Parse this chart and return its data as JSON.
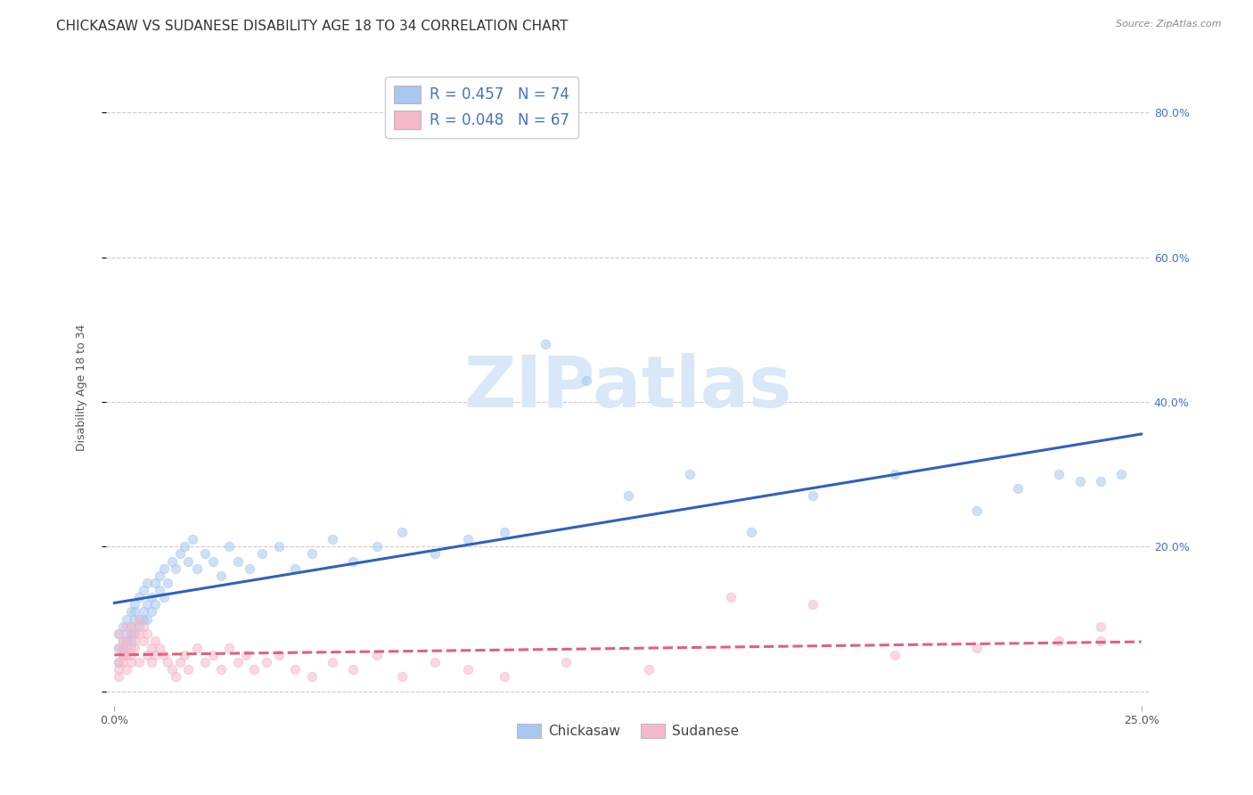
{
  "title": "CHICKASAW VS SUDANESE DISABILITY AGE 18 TO 34 CORRELATION CHART",
  "source": "Source: ZipAtlas.com",
  "ylabel_label": "Disability Age 18 to 34",
  "chickasaw_R": 0.457,
  "chickasaw_N": 74,
  "sudanese_R": 0.048,
  "sudanese_N": 67,
  "chickasaw_color": "#A8C8F0",
  "sudanese_color": "#F5B8C8",
  "chickasaw_line_color": "#3060C0",
  "sudanese_line_color": "#E06080",
  "background_color": "#FFFFFF",
  "watermark_color": "#D8E8F8",
  "legend_chickasaw": "Chickasaw",
  "legend_sudanese": "Sudanese",
  "chickasaw_x": [
    0.001,
    0.001,
    0.001,
    0.002,
    0.002,
    0.002,
    0.002,
    0.003,
    0.003,
    0.003,
    0.003,
    0.004,
    0.004,
    0.004,
    0.004,
    0.005,
    0.005,
    0.005,
    0.005,
    0.006,
    0.006,
    0.006,
    0.007,
    0.007,
    0.007,
    0.008,
    0.008,
    0.008,
    0.009,
    0.009,
    0.01,
    0.01,
    0.011,
    0.011,
    0.012,
    0.012,
    0.013,
    0.014,
    0.015,
    0.016,
    0.017,
    0.018,
    0.019,
    0.02,
    0.022,
    0.024,
    0.026,
    0.028,
    0.03,
    0.033,
    0.036,
    0.04,
    0.044,
    0.048,
    0.053,
    0.058,
    0.064,
    0.07,
    0.078,
    0.086,
    0.095,
    0.105,
    0.115,
    0.125,
    0.14,
    0.155,
    0.17,
    0.19,
    0.21,
    0.22,
    0.23,
    0.235,
    0.24,
    0.245
  ],
  "chickasaw_y": [
    0.04,
    0.06,
    0.08,
    0.05,
    0.07,
    0.09,
    0.06,
    0.07,
    0.08,
    0.1,
    0.06,
    0.09,
    0.11,
    0.08,
    0.07,
    0.1,
    0.12,
    0.08,
    0.11,
    0.1,
    0.13,
    0.09,
    0.11,
    0.14,
    0.1,
    0.12,
    0.15,
    0.1,
    0.13,
    0.11,
    0.15,
    0.12,
    0.14,
    0.16,
    0.13,
    0.17,
    0.15,
    0.18,
    0.17,
    0.19,
    0.2,
    0.18,
    0.21,
    0.17,
    0.19,
    0.18,
    0.16,
    0.2,
    0.18,
    0.17,
    0.19,
    0.2,
    0.17,
    0.19,
    0.21,
    0.18,
    0.2,
    0.22,
    0.19,
    0.21,
    0.22,
    0.48,
    0.43,
    0.27,
    0.3,
    0.22,
    0.27,
    0.3,
    0.25,
    0.28,
    0.3,
    0.29,
    0.29,
    0.3
  ],
  "sudanese_x": [
    0.001,
    0.001,
    0.001,
    0.001,
    0.001,
    0.002,
    0.002,
    0.002,
    0.002,
    0.003,
    0.003,
    0.003,
    0.003,
    0.004,
    0.004,
    0.004,
    0.004,
    0.005,
    0.005,
    0.005,
    0.006,
    0.006,
    0.006,
    0.007,
    0.007,
    0.008,
    0.008,
    0.009,
    0.009,
    0.01,
    0.01,
    0.011,
    0.012,
    0.013,
    0.014,
    0.015,
    0.016,
    0.017,
    0.018,
    0.02,
    0.022,
    0.024,
    0.026,
    0.028,
    0.03,
    0.032,
    0.034,
    0.037,
    0.04,
    0.044,
    0.048,
    0.053,
    0.058,
    0.064,
    0.07,
    0.078,
    0.086,
    0.095,
    0.11,
    0.13,
    0.15,
    0.17,
    0.19,
    0.21,
    0.23,
    0.24,
    0.24
  ],
  "sudanese_y": [
    0.02,
    0.04,
    0.06,
    0.08,
    0.03,
    0.05,
    0.07,
    0.04,
    0.06,
    0.05,
    0.03,
    0.07,
    0.09,
    0.04,
    0.06,
    0.08,
    0.05,
    0.07,
    0.09,
    0.06,
    0.08,
    0.04,
    0.1,
    0.07,
    0.09,
    0.05,
    0.08,
    0.06,
    0.04,
    0.07,
    0.05,
    0.06,
    0.05,
    0.04,
    0.03,
    0.02,
    0.04,
    0.05,
    0.03,
    0.06,
    0.04,
    0.05,
    0.03,
    0.06,
    0.04,
    0.05,
    0.03,
    0.04,
    0.05,
    0.03,
    0.02,
    0.04,
    0.03,
    0.05,
    0.02,
    0.04,
    0.03,
    0.02,
    0.04,
    0.03,
    0.13,
    0.12,
    0.05,
    0.06,
    0.07,
    0.07,
    0.09
  ],
  "xlim": [
    -0.002,
    0.252
  ],
  "ylim": [
    -0.02,
    0.86
  ],
  "yticks": [
    0.0,
    0.2,
    0.4,
    0.6,
    0.8
  ],
  "yticklabels": [
    "",
    "20.0%",
    "40.0%",
    "60.0%",
    "80.0%"
  ],
  "xticks": [
    0.0,
    0.25
  ],
  "xticklabels": [
    "0.0%",
    "25.0%"
  ],
  "grid_color": "#CCCCCC",
  "title_fontsize": 11,
  "axis_label_fontsize": 9,
  "tick_fontsize": 9,
  "tick_color": "#4472C4",
  "scatter_size": 55,
  "scatter_alpha": 0.55,
  "line_width": 2.2
}
